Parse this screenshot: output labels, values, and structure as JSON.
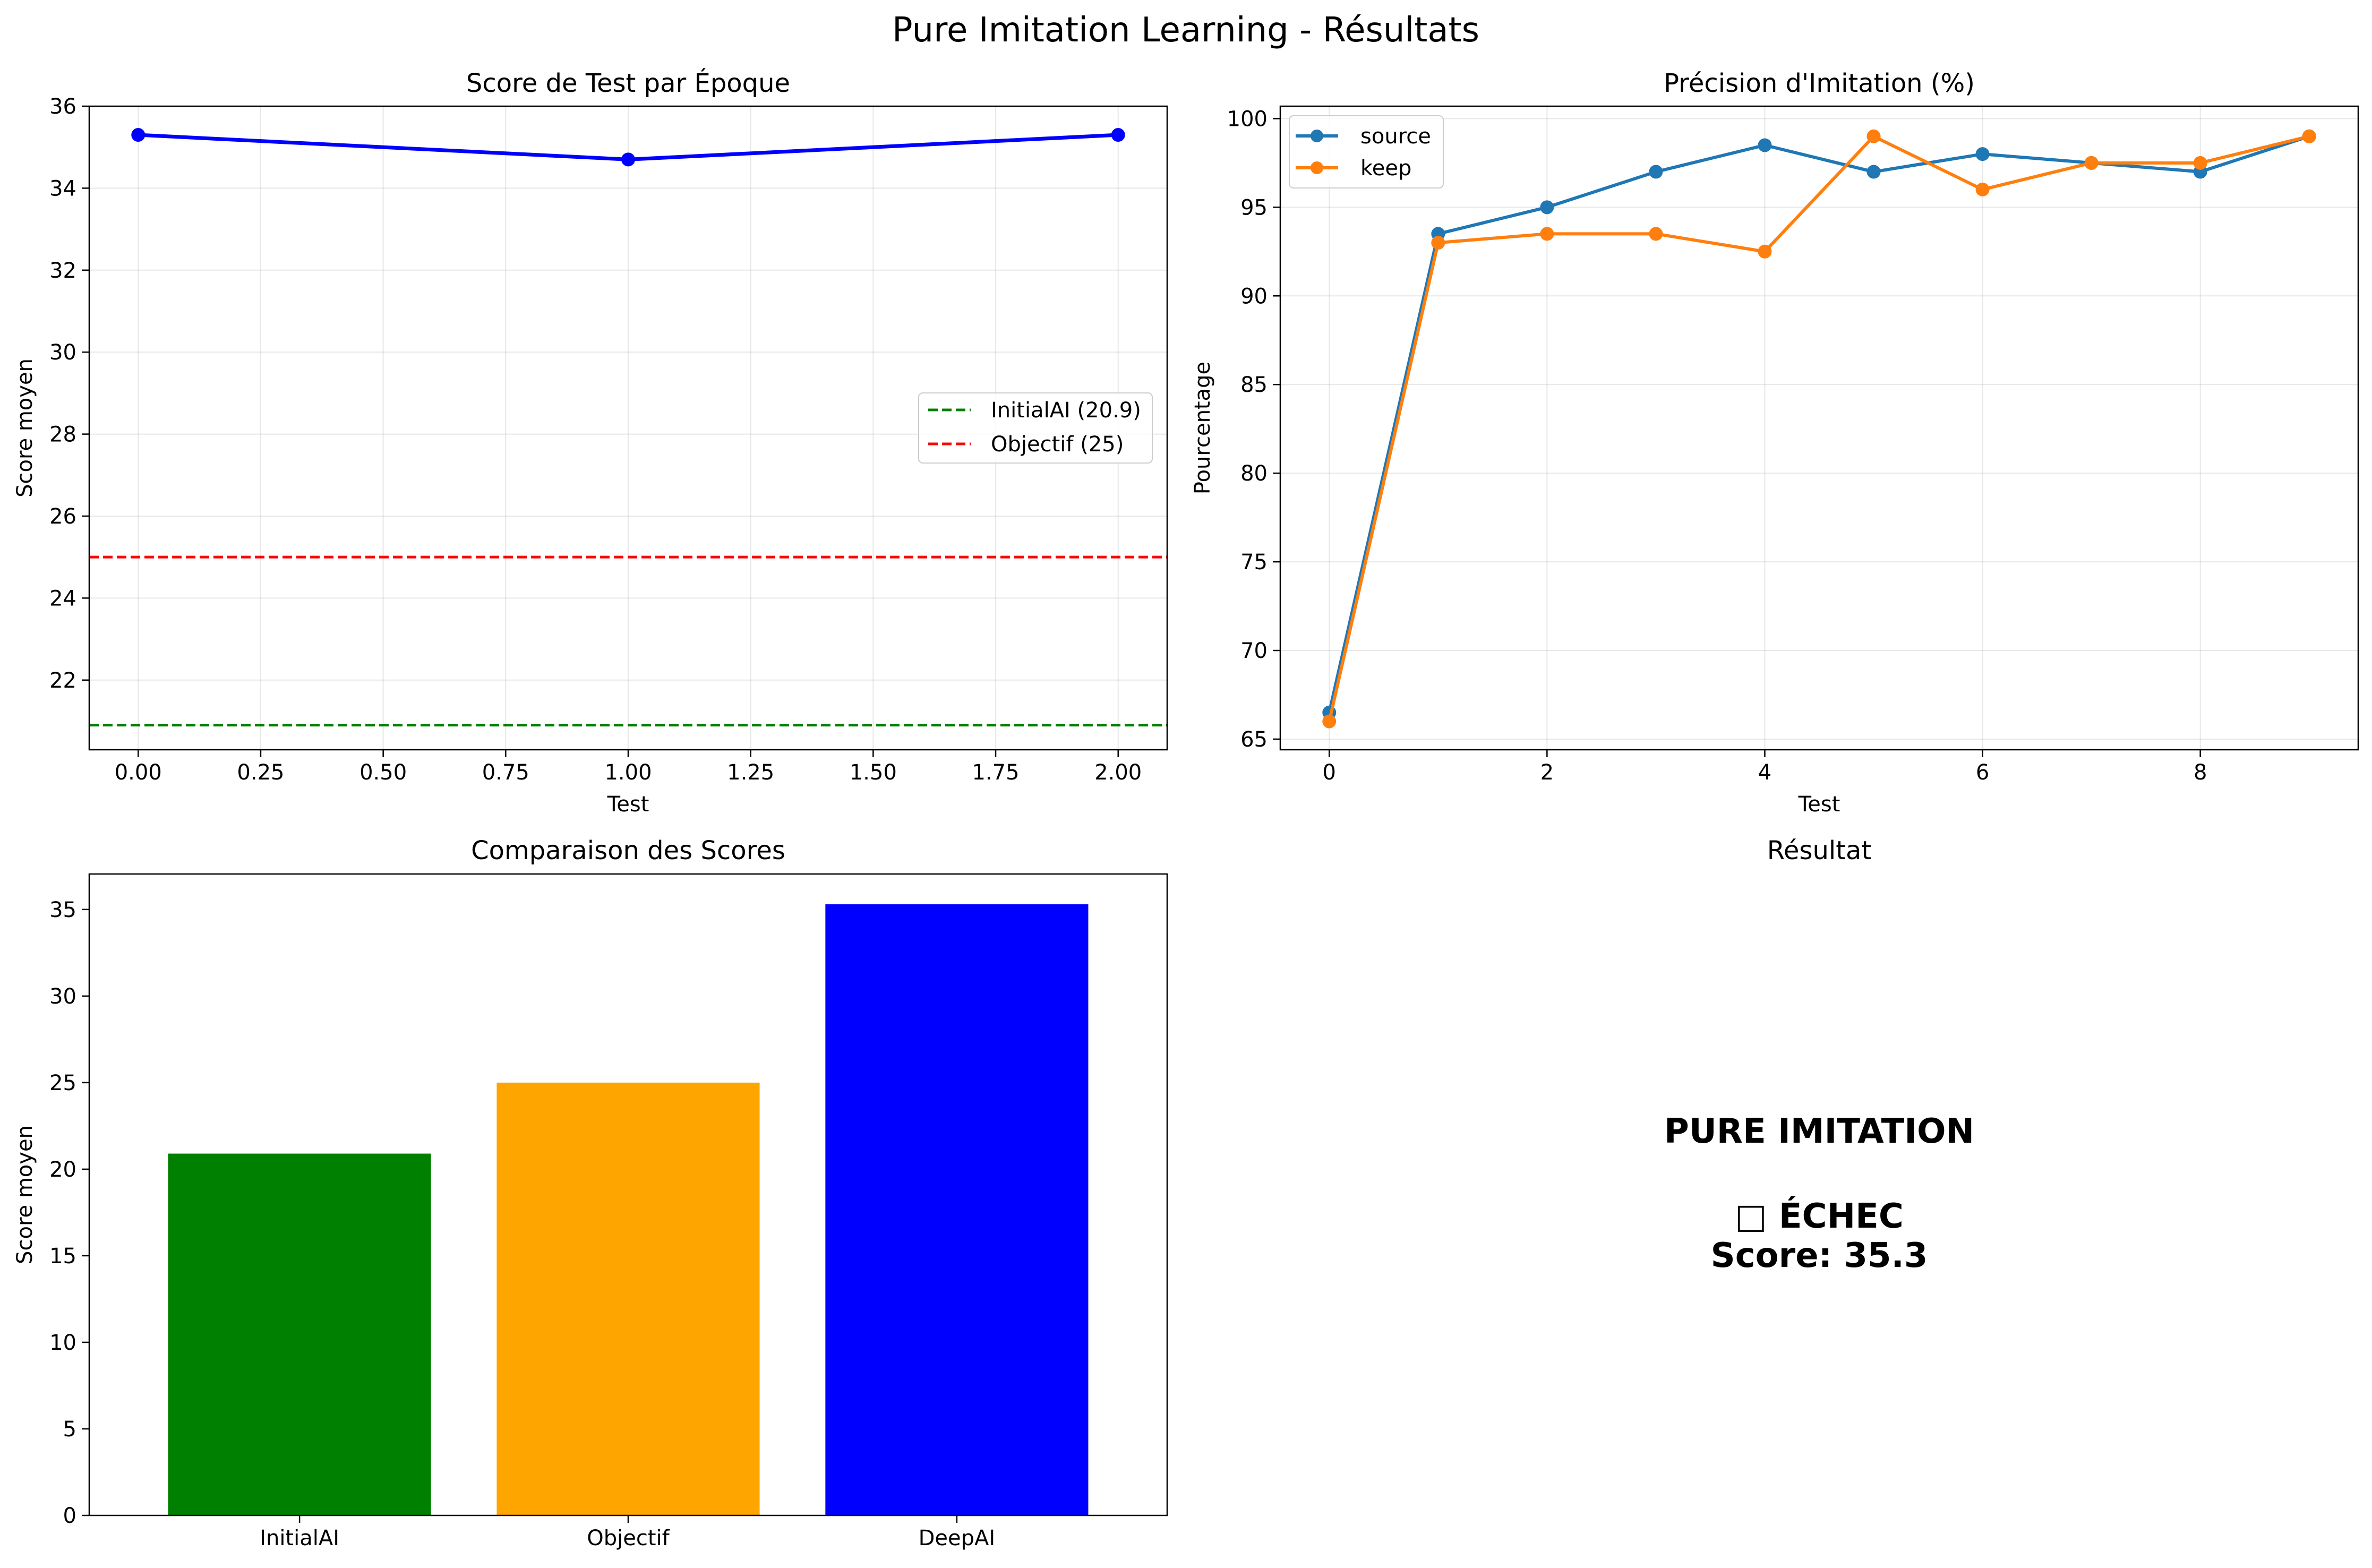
{
  "title": "Pure Imitation Learning - Résultats",
  "chart_data": [
    {
      "type": "line",
      "title": "Score de Test par Époque",
      "xlabel": "Test",
      "ylabel": "Score moyen",
      "xlim": [
        -0.1,
        2.1
      ],
      "ylim": [
        20.3,
        36.0
      ],
      "xticks": [
        0,
        0.25,
        0.5,
        0.75,
        1.0,
        1.25,
        1.5,
        1.75,
        2.0
      ],
      "xtick_labels": [
        "0.00",
        "0.25",
        "0.50",
        "0.75",
        "1.00",
        "1.25",
        "1.50",
        "1.75",
        "2.00"
      ],
      "yticks": [
        22,
        24,
        26,
        28,
        30,
        32,
        34,
        36
      ],
      "yticks_labels": [
        "22",
        "24",
        "26",
        "28",
        "30",
        "32",
        "34",
        "36"
      ],
      "grid": true,
      "legend_position": "center-right",
      "series": [
        {
          "x": [
            0,
            1,
            2
          ],
          "values": [
            35.3,
            34.7,
            35.3
          ],
          "color": "#0000ff"
        }
      ],
      "hlines": [
        {
          "name": "InitialAI (20.9)",
          "y": 20.9,
          "color": "#008000",
          "style": "dashed"
        },
        {
          "name": "Objectif (25)",
          "y": 25,
          "color": "#ff0000",
          "style": "dashed"
        }
      ]
    },
    {
      "type": "line",
      "title": "Précision d'Imitation (%)",
      "xlabel": "Test",
      "ylabel": "Pourcentage",
      "xlim": [
        -0.45,
        9.45
      ],
      "ylim": [
        64.4,
        100.7
      ],
      "xticks": [
        0,
        2,
        4,
        6,
        8
      ],
      "xtick_labels": [
        "0",
        "2",
        "4",
        "6",
        "8"
      ],
      "yticks": [
        65,
        70,
        75,
        80,
        85,
        90,
        95,
        100
      ],
      "yticks_labels": [
        "65",
        "70",
        "75",
        "80",
        "85",
        "90",
        "95",
        "100"
      ],
      "grid": true,
      "legend_position": "top-left",
      "series": [
        {
          "name": "source",
          "x": [
            0,
            1,
            2,
            3,
            4,
            5,
            6,
            7,
            8,
            9
          ],
          "values": [
            66.5,
            93.5,
            95.0,
            97.0,
            98.5,
            97.0,
            98.0,
            97.5,
            97.0,
            99.0
          ],
          "color": "#1f77b4"
        },
        {
          "name": "keep",
          "x": [
            0,
            1,
            2,
            3,
            4,
            5,
            6,
            7,
            8,
            9
          ],
          "values": [
            66.0,
            93.0,
            93.5,
            93.5,
            92.5,
            99.0,
            96.0,
            97.5,
            97.5,
            99.0
          ],
          "color": "#ff7f0e"
        }
      ]
    },
    {
      "type": "bar",
      "title": "Comparaison des Scores",
      "xlabel": "",
      "ylabel": "Score moyen",
      "ylim": [
        0,
        37.05
      ],
      "yticks": [
        0,
        5,
        10,
        15,
        20,
        25,
        30,
        35
      ],
      "yticks_labels": [
        "0",
        "5",
        "10",
        "15",
        "20",
        "25",
        "30",
        "35"
      ],
      "grid": false,
      "categories": [
        "InitialAI",
        "Objectif",
        "DeepAI"
      ],
      "values": [
        20.9,
        25,
        35.3
      ],
      "colors": [
        "#008000",
        "#ffa500",
        "#0000ff"
      ]
    }
  ],
  "result_panel": {
    "title": "Résultat",
    "line1": "PURE IMITATION",
    "line2": "□ ÉCHEC",
    "line3": "Score: 35.3"
  }
}
